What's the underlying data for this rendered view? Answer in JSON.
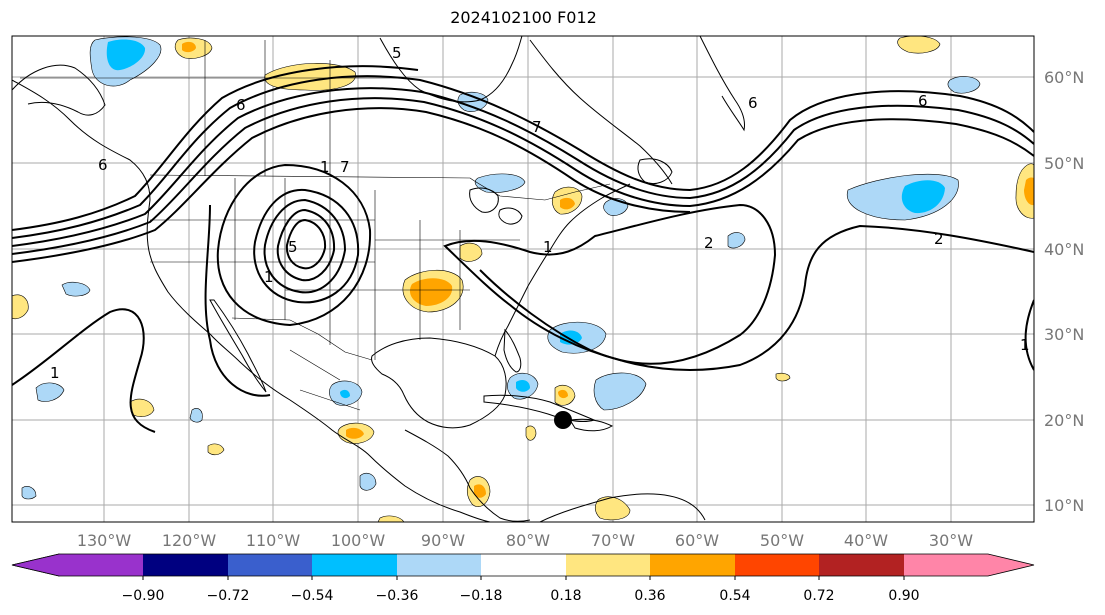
{
  "title": "2024102100 F012",
  "map": {
    "lon_ticks": [
      "130°W",
      "120°W",
      "110°W",
      "100°W",
      "90°W",
      "80°W",
      "70°W",
      "60°W",
      "50°W",
      "40°W",
      "30°W"
    ],
    "lat_ticks": [
      "60°N",
      "50°N",
      "40°N",
      "30°N",
      "20°N",
      "10°N"
    ],
    "contour_labels": [
      "6",
      "5",
      "6",
      "1",
      "7",
      "5",
      "6",
      "7",
      "1",
      "2",
      "2",
      "1",
      "1",
      "1"
    ],
    "grid": true
  },
  "colorbar": {
    "levels": [
      "−0.90",
      "−0.72",
      "−0.54",
      "−0.36",
      "−0.18",
      "0.18",
      "0.36",
      "0.54",
      "0.72",
      "0.90"
    ],
    "colors": [
      "#9932cc",
      "#000080",
      "#3a5fcd",
      "#00bfff",
      "#add8f7",
      "#ffffff",
      "#ffe680",
      "#ffa500",
      "#ff4500",
      "#b22222",
      "#ff85a8"
    ],
    "extend": "both"
  },
  "marker": {
    "icon": "filled-circle-marker",
    "color": "#000000"
  }
}
